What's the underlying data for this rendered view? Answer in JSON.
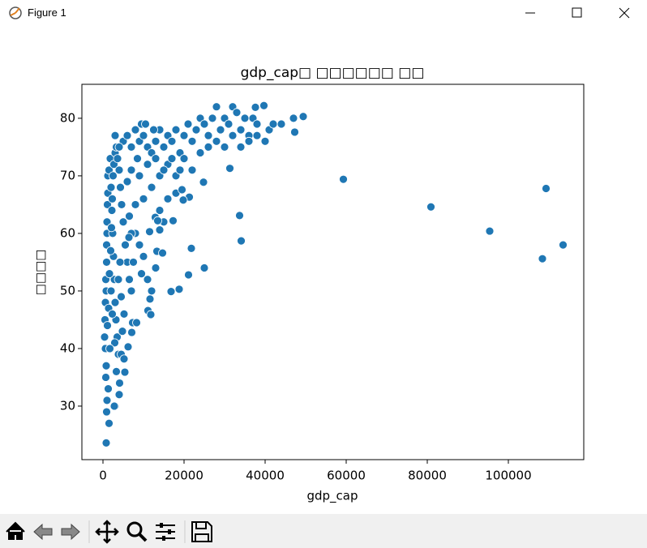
{
  "window_title": "Figure 1",
  "chart_data": {
    "type": "scatter",
    "title": "gdp_cap□ □□□□□□ □□",
    "xlabel": "gdp_cap",
    "ylabel": "□□□□",
    "color": "#1f77b4",
    "edgecolor": "#ffffff",
    "xlim": [
      -5200,
      118600
    ],
    "ylim": [
      20.7,
      85.9
    ],
    "xticks": [
      0,
      20000,
      40000,
      60000,
      80000,
      100000
    ],
    "yticks": [
      30,
      40,
      50,
      60,
      70,
      80
    ],
    "x": [
      500,
      600,
      700,
      800,
      900,
      1000,
      1100,
      1200,
      400,
      600,
      700,
      900,
      1000,
      1200,
      1500,
      1800,
      2000,
      2200,
      2400,
      2600,
      2800,
      3000,
      3200,
      3500,
      3800,
      1300,
      1000,
      900,
      800,
      1100,
      1400,
      1600,
      1900,
      2100,
      2300,
      2500,
      2700,
      3000,
      3300,
      3600,
      4000,
      4300,
      4600,
      5000,
      5500,
      6000,
      6500,
      7000,
      3800,
      4200,
      4500,
      5200,
      2900,
      3300,
      4100,
      4500,
      4800,
      2000,
      2300,
      1700,
      5000,
      6000,
      7000,
      8000,
      9000,
      10000,
      11000,
      12000,
      13000,
      14000,
      15000,
      16000,
      17000,
      18000,
      19000,
      20000,
      21000,
      22000,
      23000,
      24000,
      25000,
      26000,
      27000,
      28000,
      29000,
      30000,
      31000,
      32000,
      33000,
      34000,
      35000,
      36000,
      37000,
      38000,
      40000,
      41000,
      42000,
      20000,
      22000,
      24000,
      18000,
      16000,
      14000,
      12000,
      10000,
      8000,
      9000,
      11000,
      13000,
      15000,
      17000,
      19000,
      6000,
      7000,
      8500,
      4000,
      3000,
      9500,
      10500,
      12500,
      26000,
      28000,
      30000,
      32000,
      34000,
      36000,
      38000,
      8000,
      9000,
      10000,
      9500,
      7500,
      11000,
      12000,
      13000,
      15000,
      6500,
      7000,
      3000,
      1500,
      16000,
      18000,
      14000,
      59300,
      80900,
      95400,
      108400,
      109300,
      113500,
      49400,
      47300,
      47000,
      44000,
      39700,
      37600,
      34100,
      33700,
      31300,
      24800,
      25000,
      21100,
      21800,
      21300,
      18800,
      16800,
      17300,
      19800,
      19500,
      800,
      2800,
      4000,
      5400,
      6200,
      5200,
      7300,
      8300,
      7100,
      11100,
      11800,
      11600,
      13300,
      14700,
      14000,
      12900,
      13500,
      11500,
      6400
    ],
    "y": [
      45,
      40,
      35,
      50,
      55,
      60,
      65,
      70,
      42,
      48,
      52,
      58,
      62,
      67,
      71,
      73,
      68,
      64,
      60,
      56,
      52,
      48,
      45,
      42,
      39,
      33,
      31,
      29,
      37,
      44,
      47,
      53,
      57,
      61,
      66,
      70,
      72,
      74,
      75,
      73,
      71,
      68,
      65,
      62,
      58,
      55,
      52,
      50,
      52,
      55,
      49,
      46,
      41,
      36,
      34,
      39,
      43,
      50,
      46,
      40,
      76,
      77,
      75,
      78,
      76,
      77,
      75,
      74,
      76,
      78,
      75,
      77,
      76,
      78,
      74,
      77,
      79,
      76,
      78,
      80,
      79,
      77,
      80,
      82,
      78,
      80,
      79,
      82,
      81,
      78,
      80,
      77,
      80,
      79,
      76,
      78,
      79,
      73,
      71,
      74,
      70,
      72,
      70,
      68,
      66,
      65,
      70,
      72,
      73,
      71,
      73,
      71,
      69,
      71,
      73,
      75,
      77,
      79,
      79,
      78,
      75,
      76,
      75,
      77,
      75,
      76,
      77,
      60,
      58,
      56,
      53,
      55,
      52,
      50,
      54,
      62,
      63,
      60,
      30,
      27,
      66,
      67,
      64,
      69.4,
      64.6,
      60.4,
      55.6,
      67.8,
      58.0,
      80.3,
      77.6,
      80.0,
      79.0,
      82.2,
      81.9,
      58.7,
      63.1,
      71.3,
      68.9,
      54.0,
      52.8,
      57.4,
      66.3,
      50.3,
      49.9,
      62.2,
      65.8,
      67.6,
      23.6,
      30.0,
      32.0,
      35.9,
      40.3,
      38.2,
      44.5,
      44.5,
      42.8,
      46.6,
      45.9,
      48.6,
      56.9,
      56.6,
      60.6,
      62.8,
      62.2,
      60.3,
      59.3
    ]
  }
}
